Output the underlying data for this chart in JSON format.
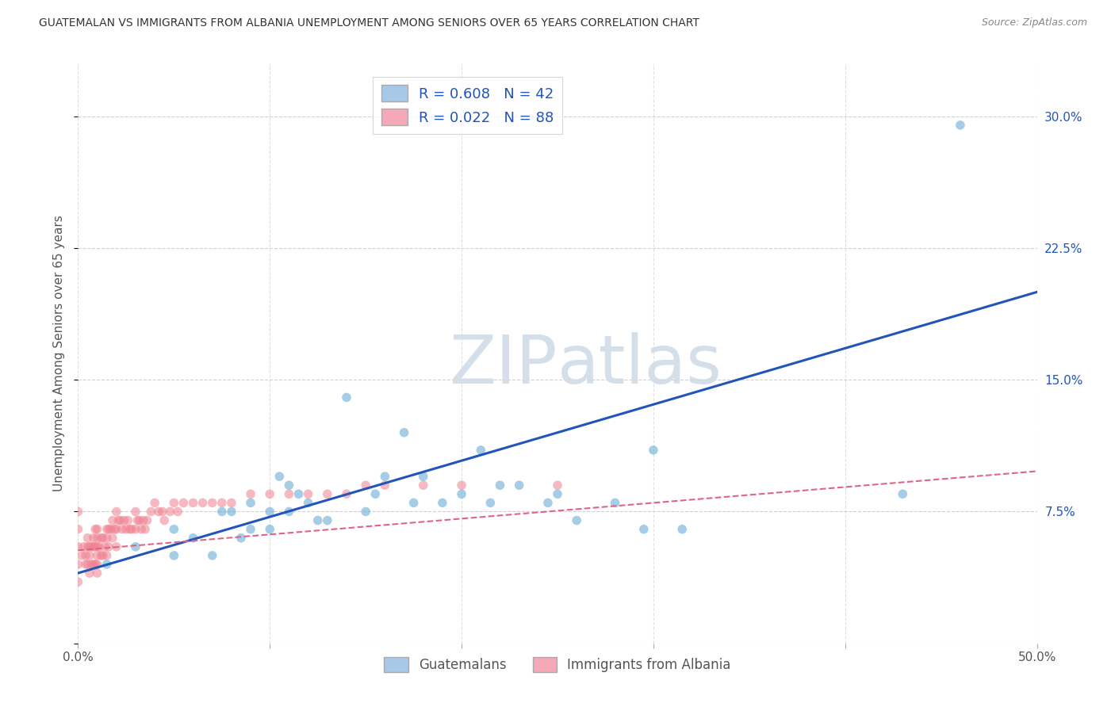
{
  "title": "GUATEMALAN VS IMMIGRANTS FROM ALBANIA UNEMPLOYMENT AMONG SENIORS OVER 65 YEARS CORRELATION CHART",
  "source": "Source: ZipAtlas.com",
  "ylabel": "Unemployment Among Seniors over 65 years",
  "xlim": [
    0.0,
    0.5
  ],
  "ylim": [
    0.0,
    0.33
  ],
  "xtick_positions": [
    0.0,
    0.1,
    0.2,
    0.3,
    0.4,
    0.5
  ],
  "xtick_labels": [
    "0.0%",
    "",
    "",
    "",
    "",
    "50.0%"
  ],
  "ytick_positions": [
    0.0,
    0.075,
    0.15,
    0.225,
    0.3
  ],
  "ytick_labels": [
    "",
    "7.5%",
    "15.0%",
    "22.5%",
    "30.0%"
  ],
  "legend_blue_label": "R = 0.608   N = 42",
  "legend_pink_label": "R = 0.022   N = 88",
  "legend_blue_color": "#a8c8e8",
  "legend_pink_color": "#f4a8b8",
  "blue_scatter_color": "#6aaed6",
  "pink_scatter_color": "#f08090",
  "trend_blue_color": "#2255bb",
  "trend_pink_color": "#dd6688",
  "watermark_color": "#d0dce8",
  "blue_scatter_x": [
    0.015,
    0.03,
    0.05,
    0.05,
    0.06,
    0.07,
    0.075,
    0.08,
    0.085,
    0.09,
    0.09,
    0.1,
    0.1,
    0.105,
    0.11,
    0.11,
    0.115,
    0.12,
    0.125,
    0.13,
    0.14,
    0.15,
    0.155,
    0.16,
    0.17,
    0.175,
    0.18,
    0.19,
    0.2,
    0.21,
    0.215,
    0.22,
    0.23,
    0.245,
    0.25,
    0.26,
    0.28,
    0.295,
    0.3,
    0.315,
    0.43,
    0.46
  ],
  "blue_scatter_y": [
    0.045,
    0.055,
    0.05,
    0.065,
    0.06,
    0.05,
    0.075,
    0.075,
    0.06,
    0.065,
    0.08,
    0.065,
    0.075,
    0.095,
    0.075,
    0.09,
    0.085,
    0.08,
    0.07,
    0.07,
    0.14,
    0.075,
    0.085,
    0.095,
    0.12,
    0.08,
    0.095,
    0.08,
    0.085,
    0.11,
    0.08,
    0.09,
    0.09,
    0.08,
    0.085,
    0.07,
    0.08,
    0.065,
    0.11,
    0.065,
    0.085,
    0.295
  ],
  "pink_scatter_x": [
    0.0,
    0.0,
    0.0,
    0.0,
    0.0,
    0.002,
    0.003,
    0.004,
    0.004,
    0.005,
    0.005,
    0.005,
    0.006,
    0.006,
    0.006,
    0.007,
    0.007,
    0.008,
    0.008,
    0.008,
    0.009,
    0.009,
    0.009,
    0.01,
    0.01,
    0.01,
    0.01,
    0.01,
    0.01,
    0.011,
    0.012,
    0.012,
    0.013,
    0.013,
    0.014,
    0.015,
    0.015,
    0.015,
    0.016,
    0.016,
    0.017,
    0.018,
    0.018,
    0.019,
    0.02,
    0.02,
    0.02,
    0.021,
    0.022,
    0.023,
    0.024,
    0.025,
    0.026,
    0.027,
    0.028,
    0.03,
    0.03,
    0.031,
    0.032,
    0.033,
    0.034,
    0.035,
    0.036,
    0.038,
    0.04,
    0.042,
    0.044,
    0.045,
    0.048,
    0.05,
    0.052,
    0.055,
    0.06,
    0.065,
    0.07,
    0.075,
    0.08,
    0.09,
    0.1,
    0.11,
    0.12,
    0.13,
    0.14,
    0.15,
    0.16,
    0.18,
    0.2,
    0.25
  ],
  "pink_scatter_y": [
    0.075,
    0.065,
    0.055,
    0.045,
    0.035,
    0.05,
    0.055,
    0.05,
    0.045,
    0.06,
    0.055,
    0.045,
    0.055,
    0.05,
    0.04,
    0.055,
    0.045,
    0.06,
    0.055,
    0.045,
    0.065,
    0.055,
    0.045,
    0.065,
    0.06,
    0.055,
    0.05,
    0.045,
    0.04,
    0.055,
    0.06,
    0.05,
    0.06,
    0.05,
    0.055,
    0.065,
    0.06,
    0.05,
    0.065,
    0.055,
    0.065,
    0.07,
    0.06,
    0.065,
    0.075,
    0.065,
    0.055,
    0.07,
    0.07,
    0.065,
    0.07,
    0.065,
    0.07,
    0.065,
    0.065,
    0.075,
    0.065,
    0.07,
    0.07,
    0.065,
    0.07,
    0.065,
    0.07,
    0.075,
    0.08,
    0.075,
    0.075,
    0.07,
    0.075,
    0.08,
    0.075,
    0.08,
    0.08,
    0.08,
    0.08,
    0.08,
    0.08,
    0.085,
    0.085,
    0.085,
    0.085,
    0.085,
    0.085,
    0.09,
    0.09,
    0.09,
    0.09,
    0.09
  ],
  "blue_trend_x": [
    0.0,
    0.5
  ],
  "blue_trend_y": [
    0.04,
    0.2
  ],
  "pink_trend_x": [
    0.0,
    0.5
  ],
  "pink_trend_y": [
    0.053,
    0.098
  ],
  "background_color": "#ffffff",
  "grid_color": "#cccccc",
  "bottom_legend_labels": [
    "Guatemalans",
    "Immigrants from Albania"
  ]
}
